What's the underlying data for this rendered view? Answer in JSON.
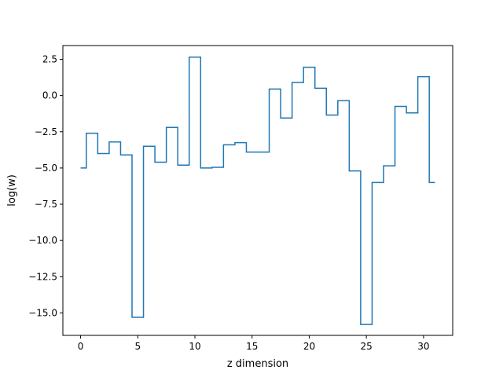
{
  "chart_data": {
    "type": "line",
    "drawstyle": "steps-mid",
    "xlabel": "z dimension",
    "ylabel": "log(w)",
    "xlim": [
      -1.55,
      32.55
    ],
    "ylim": [
      -16.55,
      3.45
    ],
    "xticks": [
      0,
      5,
      10,
      15,
      20,
      25,
      30
    ],
    "yticks": [
      -15.0,
      -12.5,
      -10.0,
      -7.5,
      -5.0,
      -2.5,
      0.0,
      2.5
    ],
    "xtick_labels": [
      "0",
      "5",
      "10",
      "15",
      "20",
      "25",
      "30"
    ],
    "ytick_labels": [
      "−15.0",
      "−12.5",
      "−10.0",
      "−7.5",
      "−5.0",
      "−2.5",
      "0.0",
      "2.5"
    ],
    "grid": false,
    "line_color": "#1f77b4",
    "series": [
      {
        "x": [
          0,
          1,
          2,
          3,
          4,
          5,
          6,
          7,
          8,
          9,
          10,
          11,
          12,
          13,
          14,
          15,
          16,
          17,
          18,
          19,
          20,
          21,
          22,
          23,
          24,
          25,
          26,
          27,
          28,
          29,
          30,
          31
        ],
        "values": [
          -5.0,
          -2.6,
          -4.0,
          -3.2,
          -4.1,
          -15.3,
          -3.5,
          -4.6,
          -2.2,
          -4.8,
          2.65,
          -5.0,
          -4.95,
          -3.4,
          -3.25,
          -3.9,
          -3.9,
          0.45,
          -1.55,
          0.9,
          1.95,
          0.5,
          -1.35,
          -0.35,
          -5.2,
          -15.8,
          -6.0,
          -4.85,
          -0.75,
          -1.2,
          1.3,
          -6.0
        ]
      }
    ]
  }
}
